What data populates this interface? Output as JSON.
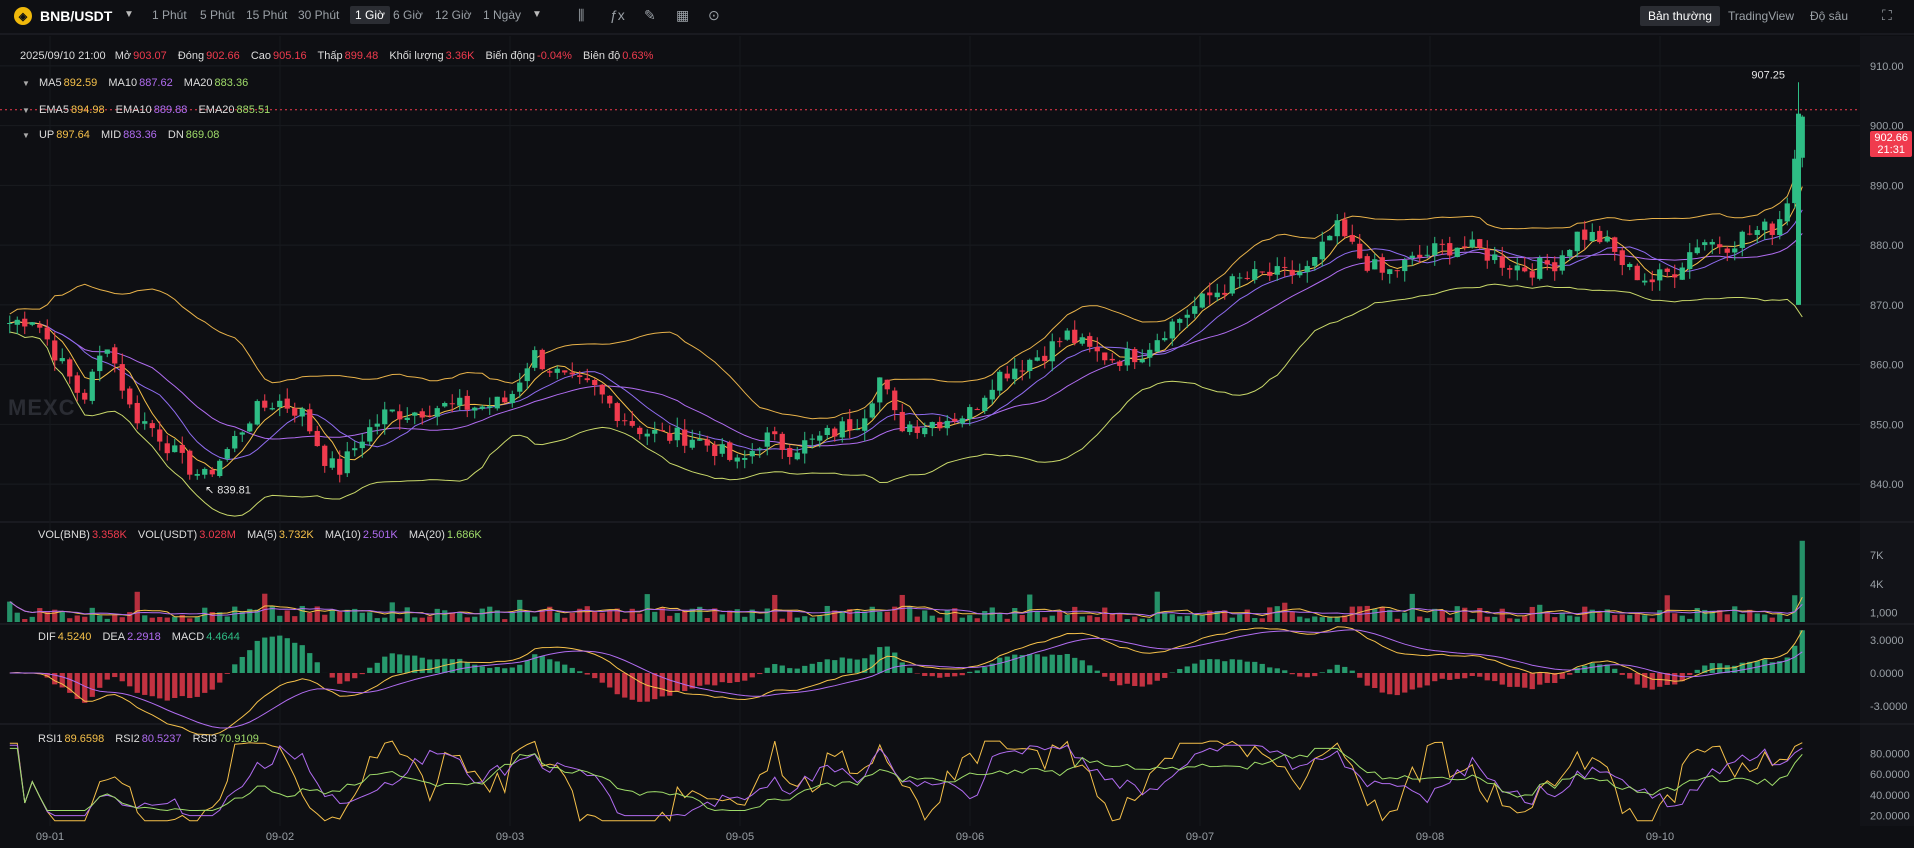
{
  "toolbar": {
    "symbol": "BNB/USDT",
    "timeframes": [
      "1 Phút",
      "5 Phút",
      "15 Phút",
      "30 Phút",
      "1 Giờ",
      "6 Giờ",
      "12 Giờ",
      "1 Ngày"
    ],
    "active_timeframe": "1 Giờ",
    "view_modes": [
      "Bản thường",
      "TradingView",
      "Độ sâu"
    ],
    "active_view": "Bản thường"
  },
  "ohlc": {
    "datetime": "2025/09/10 21:00",
    "open_label": "Mở",
    "open": "903.07",
    "close_label": "Đóng",
    "close": "902.66",
    "high_label": "Cao",
    "high": "905.16",
    "low_label": "Thấp",
    "low": "899.48",
    "vol_label": "Khối lượng",
    "vol": "3.36K",
    "change_label": "Biến động",
    "change": "-0.04%",
    "amp_label": "Biên độ",
    "amp": "0.63%"
  },
  "ma": {
    "ma5_label": "MA5",
    "ma5": "892.59",
    "ma10_label": "MA10",
    "ma10": "887.62",
    "ma20_label": "MA20",
    "ma20": "883.36"
  },
  "ema": {
    "ema5_label": "EMA5",
    "ema5": "894.98",
    "ema10_label": "EMA10",
    "ema10": "889.88",
    "ema20_label": "EMA20",
    "ema20": "885.51"
  },
  "boll": {
    "up_label": "UP",
    "up": "897.64",
    "mid_label": "MID",
    "mid": "883.36",
    "dn_label": "DN",
    "dn": "869.08"
  },
  "vol": {
    "bnb_label": "VOL(BNB)",
    "bnb": "3.358K",
    "usdt_label": "VOL(USDT)",
    "usdt": "3.028M",
    "ma5_label": "MA(5)",
    "ma5": "3.732K",
    "ma10_label": "MA(10)",
    "ma10": "2.501K",
    "ma20_label": "MA(20)",
    "ma20": "1.686K"
  },
  "macd": {
    "dif_label": "DIF",
    "dif": "4.5240",
    "dea_label": "DEA",
    "dea": "2.2918",
    "macd_label": "MACD",
    "macd": "4.4644"
  },
  "rsi": {
    "rsi1_label": "RSI1",
    "rsi1": "89.6598",
    "rsi2_label": "RSI2",
    "rsi2": "80.5237",
    "rsi3_label": "RSI3",
    "rsi3": "70.9109"
  },
  "price_tag": {
    "price": "902.66",
    "countdown": "21:31"
  },
  "high_marker": "907.25",
  "low_marker": "839.81",
  "watermark": "MEXC",
  "colors": {
    "up": "#2ebd85",
    "down": "#f03b4e",
    "ma5": "#f5c04a",
    "ma10": "#b06cf0",
    "ma20": "#9fdc6a",
    "boll": "#e8b24a",
    "bg": "#0e0f13"
  },
  "chart_data": {
    "type": "candlestick",
    "interval": "1h",
    "x_ticks": [
      "09-01",
      "09-02",
      "09-03",
      "09-05",
      "09-06",
      "09-07",
      "09-08",
      "09-10"
    ],
    "price_ticks": [
      "910.00",
      "900.00",
      "890.00",
      "880.00",
      "870.00",
      "860.00",
      "850.00",
      "840.00"
    ],
    "price_range": [
      834,
      915
    ],
    "volume_ticks": [
      "7K",
      "4K",
      "1,000"
    ],
    "macd_ticks": [
      "3.0000",
      "0.0000",
      "-3.0000"
    ],
    "rsi_ticks": [
      "80.0000",
      "60.0000",
      "40.0000",
      "20.0000"
    ],
    "close_path": [
      {
        "x": 0,
        "price": 867
      },
      {
        "x": 20,
        "price": 868
      },
      {
        "x": 40,
        "price": 861
      },
      {
        "x": 60,
        "price": 854
      },
      {
        "x": 80,
        "price": 864
      },
      {
        "x": 100,
        "price": 852
      },
      {
        "x": 120,
        "price": 849
      },
      {
        "x": 140,
        "price": 844
      },
      {
        "x": 160,
        "price": 841
      },
      {
        "x": 180,
        "price": 846
      },
      {
        "x": 200,
        "price": 852
      },
      {
        "x": 220,
        "price": 854
      },
      {
        "x": 240,
        "price": 852
      },
      {
        "x": 260,
        "price": 844
      },
      {
        "x": 270,
        "price": 842
      },
      {
        "x": 290,
        "price": 848
      },
      {
        "x": 310,
        "price": 852
      },
      {
        "x": 330,
        "price": 852
      },
      {
        "x": 350,
        "price": 853
      },
      {
        "x": 370,
        "price": 853
      },
      {
        "x": 390,
        "price": 853
      },
      {
        "x": 410,
        "price": 854
      },
      {
        "x": 420,
        "price": 858
      },
      {
        "x": 430,
        "price": 862
      },
      {
        "x": 440,
        "price": 860
      },
      {
        "x": 460,
        "price": 857
      },
      {
        "x": 480,
        "price": 856
      },
      {
        "x": 500,
        "price": 852
      },
      {
        "x": 520,
        "price": 849
      },
      {
        "x": 540,
        "price": 848
      },
      {
        "x": 560,
        "price": 848
      },
      {
        "x": 580,
        "price": 846
      },
      {
        "x": 600,
        "price": 843
      },
      {
        "x": 620,
        "price": 848
      },
      {
        "x": 640,
        "price": 846
      },
      {
        "x": 660,
        "price": 847
      },
      {
        "x": 680,
        "price": 849
      },
      {
        "x": 700,
        "price": 851
      },
      {
        "x": 716,
        "price": 858
      },
      {
        "x": 730,
        "price": 850
      },
      {
        "x": 750,
        "price": 850
      },
      {
        "x": 770,
        "price": 851
      },
      {
        "x": 790,
        "price": 852
      },
      {
        "x": 810,
        "price": 858
      },
      {
        "x": 830,
        "price": 860
      },
      {
        "x": 850,
        "price": 862
      },
      {
        "x": 870,
        "price": 865
      },
      {
        "x": 890,
        "price": 862
      },
      {
        "x": 910,
        "price": 861
      },
      {
        "x": 930,
        "price": 862
      },
      {
        "x": 950,
        "price": 866
      },
      {
        "x": 970,
        "price": 869
      },
      {
        "x": 990,
        "price": 872
      },
      {
        "x": 1010,
        "price": 874
      },
      {
        "x": 1030,
        "price": 875
      },
      {
        "x": 1050,
        "price": 875
      },
      {
        "x": 1070,
        "price": 876
      },
      {
        "x": 1090,
        "price": 883
      },
      {
        "x": 1110,
        "price": 878
      },
      {
        "x": 1130,
        "price": 875
      },
      {
        "x": 1150,
        "price": 877
      },
      {
        "x": 1170,
        "price": 879
      },
      {
        "x": 1190,
        "price": 880
      },
      {
        "x": 1210,
        "price": 879
      },
      {
        "x": 1230,
        "price": 877
      },
      {
        "x": 1250,
        "price": 876
      },
      {
        "x": 1270,
        "price": 877
      },
      {
        "x": 1290,
        "price": 882
      },
      {
        "x": 1310,
        "price": 881
      },
      {
        "x": 1330,
        "price": 876
      },
      {
        "x": 1350,
        "price": 874
      },
      {
        "x": 1370,
        "price": 876
      },
      {
        "x": 1390,
        "price": 881
      },
      {
        "x": 1410,
        "price": 880
      },
      {
        "x": 1430,
        "price": 882
      },
      {
        "x": 1450,
        "price": 883
      },
      {
        "x": 1460,
        "price": 886
      },
      {
        "x": 1468,
        "price": 895
      },
      {
        "x": 1474,
        "price": 903
      }
    ]
  }
}
